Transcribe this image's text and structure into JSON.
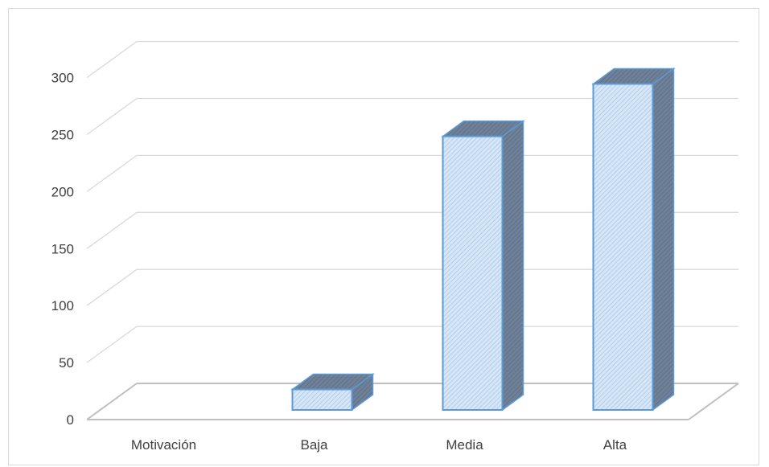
{
  "chart_data": {
    "type": "bar",
    "style": "3d-column",
    "categories": [
      "Motivación",
      "Baja",
      "Media",
      "Alta"
    ],
    "values": [
      0,
      18,
      240,
      286
    ],
    "yticks": [
      0,
      50,
      100,
      150,
      200,
      250,
      300
    ],
    "ylim": [
      0,
      300
    ],
    "grid": true,
    "legend": "none",
    "colors": {
      "bar_fill": "#c9ddf2",
      "bar_stroke": "#5b9bd5",
      "bar_side": "#6d8098",
      "bar_top": "#7a8ea8",
      "grid": "#d9d9d9",
      "floor": "#bfbfbf"
    }
  }
}
